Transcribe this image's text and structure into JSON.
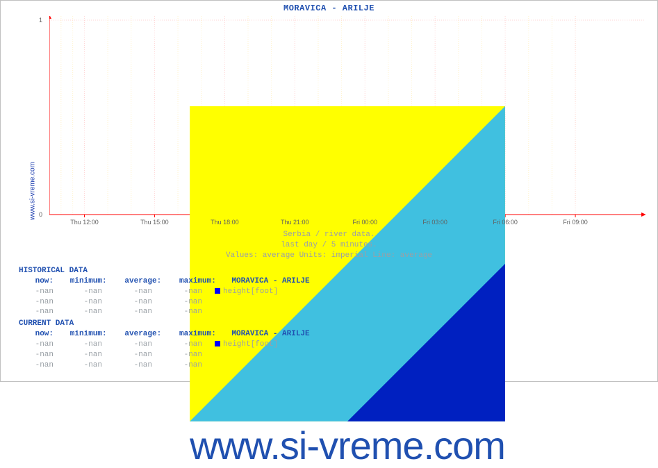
{
  "site_label": "www.si-vreme.com",
  "chart": {
    "type": "line",
    "title": "MORAVICA -  ARILJE",
    "background_color": "#ffffff",
    "axis_color": "#ff0000",
    "major_grid_color": "#ffd6d6",
    "minor_grid_color": "#fff2cc",
    "ylim": [
      0,
      1
    ],
    "yticks": [
      0,
      1
    ],
    "x_tick_labels": [
      "Thu 12:00",
      "Thu 15:00",
      "Thu 18:00",
      "Thu 21:00",
      "Fri 00:00",
      "Fri 03:00",
      "Fri 06:00",
      "Fri 09:00"
    ],
    "x_minor_per_major": 3,
    "series": []
  },
  "subtitle": {
    "line1": "Serbia / river data.",
    "line2": "last day / 5 minutes.",
    "line3": "Values: average  Units: imperial  Line: average",
    "color": "#9aa0a6"
  },
  "tables": {
    "headers": {
      "now": "now:",
      "minimum": "minimum:",
      "average": "average:",
      "maximum": "maximum:"
    },
    "historical": {
      "title": "HISTORICAL DATA",
      "series_label": "MORAVICA -  ARILJE",
      "rows": [
        {
          "now": "-nan",
          "minimum": "-nan",
          "average": "-nan",
          "maximum": "-nan",
          "legend_color": "#0000ff",
          "legend_label": "height[foot]"
        },
        {
          "now": "-nan",
          "minimum": "-nan",
          "average": "-nan",
          "maximum": "-nan"
        },
        {
          "now": "-nan",
          "minimum": "-nan",
          "average": "-nan",
          "maximum": "-nan"
        }
      ]
    },
    "current": {
      "title": "CURRENT DATA",
      "series_label": "MORAVICA -  ARILJE",
      "rows": [
        {
          "now": "-nan",
          "minimum": "-nan",
          "average": "-nan",
          "maximum": "-nan",
          "legend_color": "#0000ff",
          "legend_label": "height[foot]"
        },
        {
          "now": "-nan",
          "minimum": "-nan",
          "average": "-nan",
          "maximum": "-nan"
        },
        {
          "now": "-nan",
          "minimum": "-nan",
          "average": "-nan",
          "maximum": "-nan"
        }
      ]
    }
  },
  "watermark": {
    "text": "www.si-vreme.com",
    "text_color": "#2050b0",
    "logo_colors": {
      "bg": "#ffff00",
      "stripe": "#40c0e0",
      "tri": "#0020c0"
    }
  }
}
